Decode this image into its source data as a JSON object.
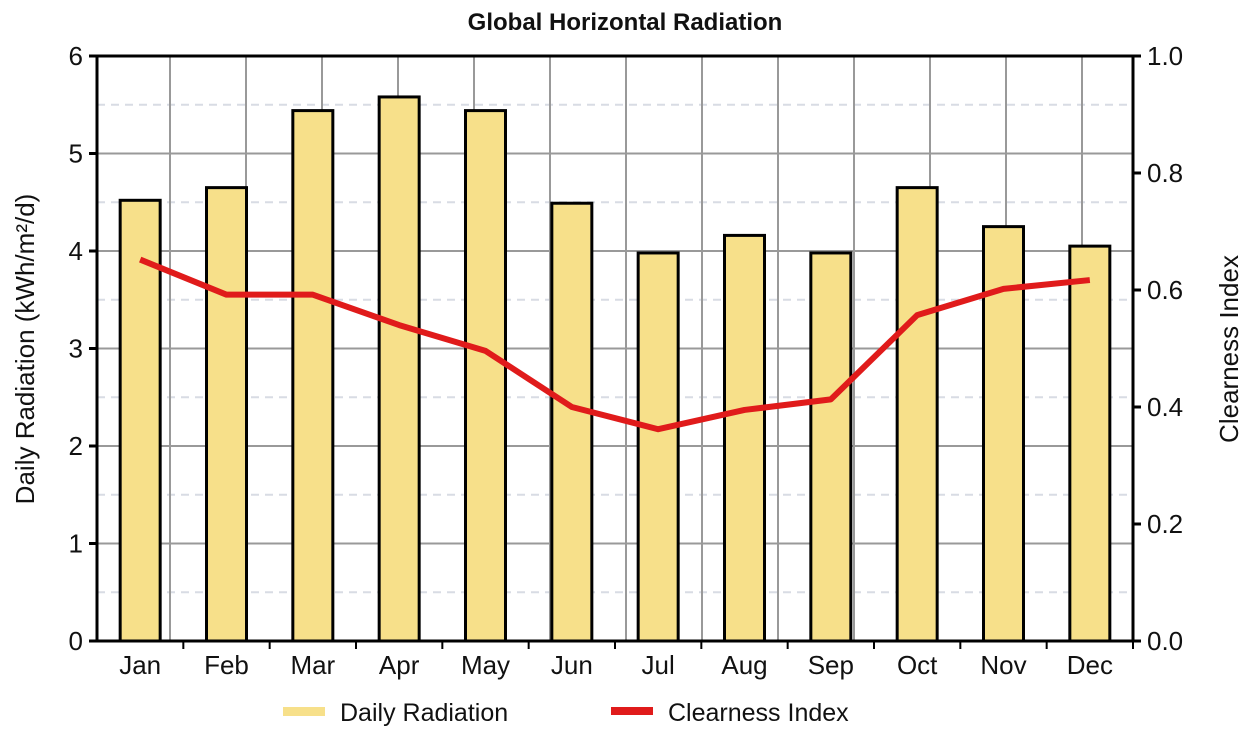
{
  "chart_data": {
    "type": "bar",
    "title": "Global Horizontal Radiation",
    "categories": [
      "Jan",
      "Feb",
      "Mar",
      "Apr",
      "May",
      "Jun",
      "Jul",
      "Aug",
      "Sep",
      "Oct",
      "Nov",
      "Dec"
    ],
    "series": [
      {
        "name": "Daily Radiation",
        "axis": "left",
        "type": "bar",
        "color": "#f7e08a",
        "values": [
          4.52,
          4.65,
          5.44,
          5.58,
          5.44,
          4.49,
          3.98,
          4.16,
          3.98,
          4.65,
          4.25,
          4.05
        ]
      },
      {
        "name": "Clearness Index",
        "axis": "right",
        "type": "line",
        "color": "#e01b1b",
        "values": [
          0.652,
          0.592,
          0.592,
          0.54,
          0.496,
          0.4,
          0.362,
          0.395,
          0.413,
          0.557,
          0.602,
          0.617
        ]
      }
    ],
    "ylabel": "Daily Radiation (kWh/m²/d)",
    "y2label": "Clearness Index",
    "ylim": [
      0,
      6
    ],
    "y2lim": [
      0,
      1
    ],
    "yticks": [
      "0",
      "1",
      "2",
      "3",
      "4",
      "5",
      "6"
    ],
    "y2ticks": [
      "0.0",
      "0.2",
      "0.4",
      "0.6",
      "0.8",
      "1.0"
    ],
    "grid": true,
    "legend_position": "bottom"
  }
}
